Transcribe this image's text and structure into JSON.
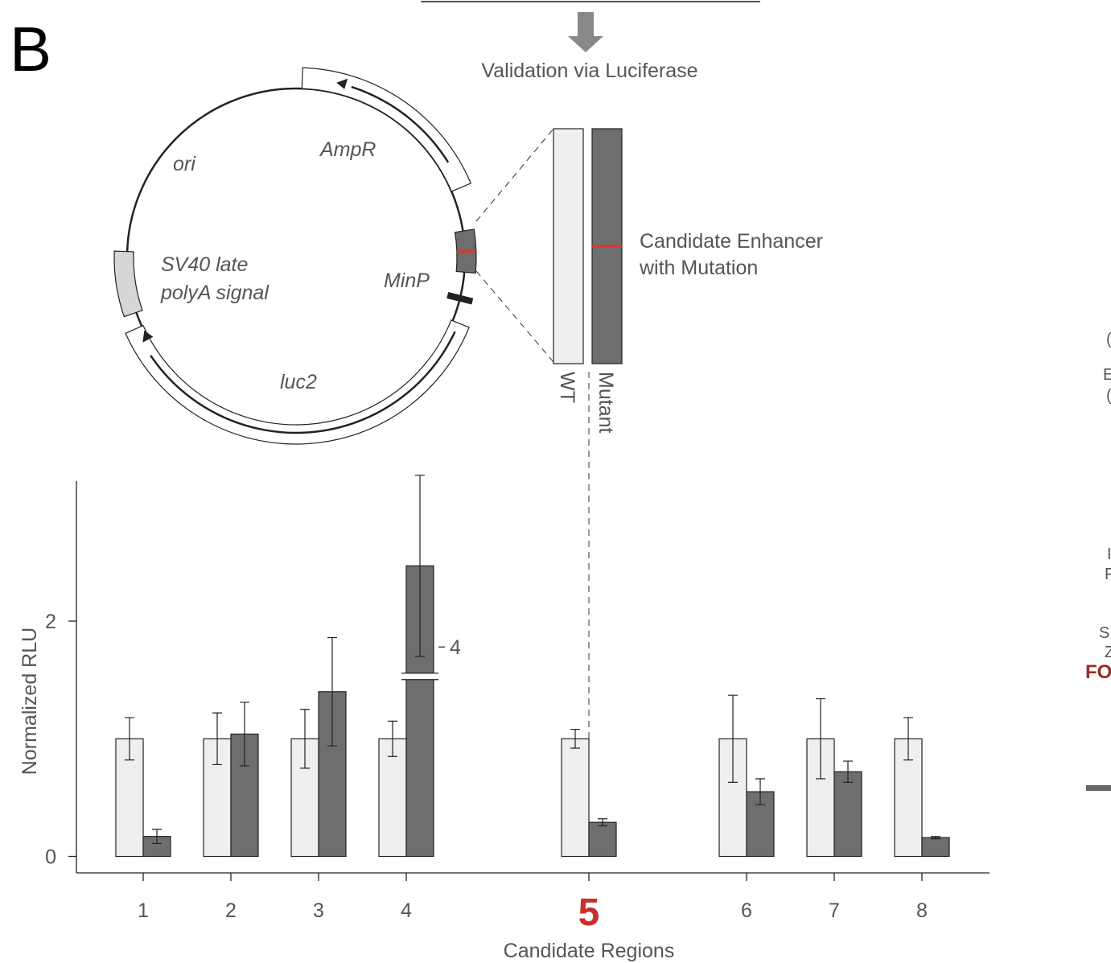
{
  "panel_label": "B",
  "header": "Validation via Luciferase",
  "plasmid": {
    "ampr": "AmpR",
    "ori": "ori",
    "sv40_lines": [
      "SV40 late",
      "polyA signal"
    ],
    "minp": "MinP",
    "luc2": "luc2"
  },
  "insert": {
    "label_lines": [
      "Candidate Enhancer",
      "with Mutation"
    ],
    "wt": "WT",
    "mutant": "Mutant"
  },
  "edge_fragments": [
    "(",
    "E",
    "(",
    "I",
    "F",
    "S",
    "Z",
    "FO"
  ],
  "chart_data": {
    "type": "bar",
    "x_label": "Candidate Regions",
    "y_label": "Normalized RLU",
    "categories": [
      "1",
      "2",
      "3",
      "4",
      "5",
      "6",
      "7",
      "8"
    ],
    "highlight_index": 4,
    "highlight_color": "#c8302c",
    "series": [
      {
        "name": "WT",
        "color": "#efefef",
        "values": [
          1,
          1,
          1,
          1,
          1,
          1,
          1,
          1
        ],
        "errors": [
          0.18,
          0.22,
          0.25,
          0.15,
          0.08,
          0.37,
          0.34,
          0.18
        ]
      },
      {
        "name": "Mutant",
        "color": "#6e6e6e",
        "values": [
          0.17,
          1.04,
          1.4,
          4.69,
          0.29,
          0.55,
          0.72,
          0.16
        ],
        "errors": [
          0.06,
          0.27,
          0.46,
          0.77,
          0.03,
          0.11,
          0.09,
          0.01
        ]
      }
    ],
    "ylim": [
      -0.14,
      3.19
    ],
    "yticks": [
      0,
      2
    ],
    "axis_break": {
      "from": 1.53,
      "to": 3.75,
      "ticks": [
        4
      ]
    }
  }
}
